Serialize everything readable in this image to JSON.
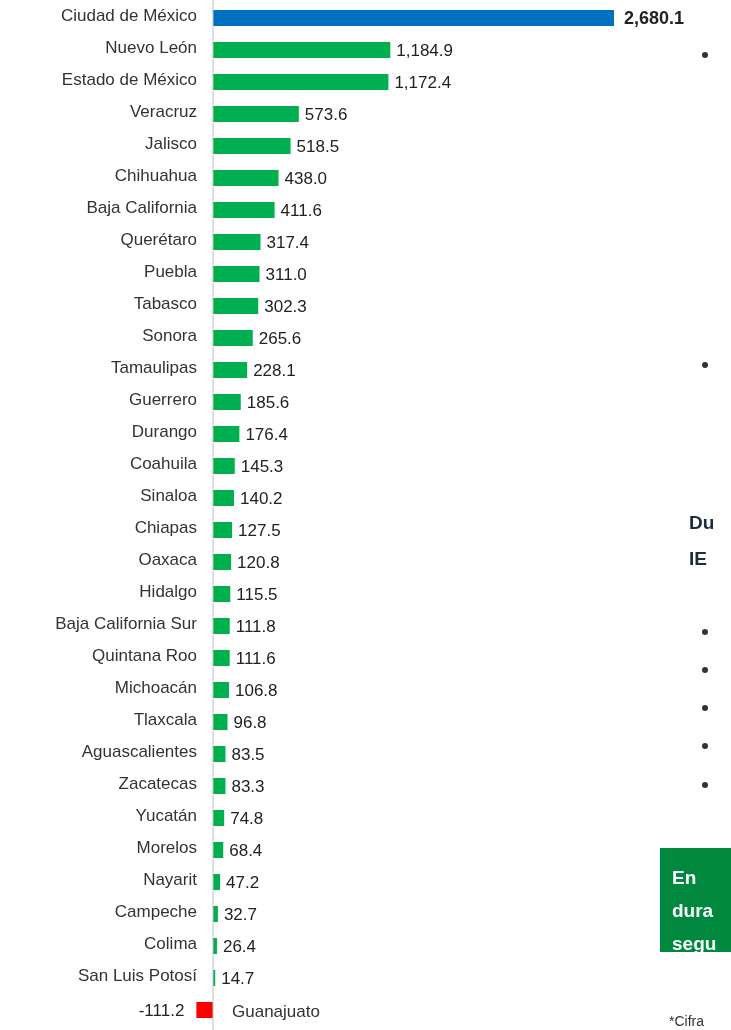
{
  "chart_data": {
    "type": "bar",
    "orientation": "horizontal",
    "categories": [
      "Ciudad de México",
      "Nuevo León",
      "Estado de México",
      "Veracruz",
      "Jalisco",
      "Chihuahua",
      "Baja California",
      "Querétaro",
      "Puebla",
      "Tabasco",
      "Sonora",
      "Tamaulipas",
      "Guerrero",
      "Durango",
      "Coahuila",
      "Sinaloa",
      "Chiapas",
      "Oaxaca",
      "Hidalgo",
      "Baja California Sur",
      "Quintana Roo",
      "Michoacán",
      "Tlaxcala",
      "Aguascalientes",
      "Zacatecas",
      "Yucatán",
      "Morelos",
      "Nayarit",
      "Campeche",
      "Colima",
      "San Luis Potosí",
      "Guanajuato"
    ],
    "values": [
      2680.1,
      1184.9,
      1172.4,
      573.6,
      518.5,
      438.0,
      411.6,
      317.4,
      311.0,
      302.3,
      265.6,
      228.1,
      185.6,
      176.4,
      145.3,
      140.2,
      127.5,
      120.8,
      115.5,
      111.8,
      111.6,
      106.8,
      96.8,
      83.5,
      83.3,
      74.8,
      68.4,
      47.2,
      32.7,
      26.4,
      14.7,
      -111.2
    ],
    "colors": [
      "#0070c0",
      "#00b050",
      "#00b050",
      "#00b050",
      "#00b050",
      "#00b050",
      "#00b050",
      "#00b050",
      "#00b050",
      "#00b050",
      "#00b050",
      "#00b050",
      "#00b050",
      "#00b050",
      "#00b050",
      "#00b050",
      "#00b050",
      "#00b050",
      "#00b050",
      "#00b050",
      "#00b050",
      "#00b050",
      "#00b050",
      "#00b050",
      "#00b050",
      "#00b050",
      "#00b050",
      "#00b050",
      "#00b050",
      "#00b050",
      "#00b050",
      "#ff0000"
    ],
    "value_labels": [
      "2,680.1",
      "1,184.9",
      "1,172.4",
      "573.6",
      "518.5",
      "438.0",
      "411.6",
      "317.4",
      "311.0",
      "302.3",
      "265.6",
      "228.1",
      "185.6",
      "176.4",
      "145.3",
      "140.2",
      "127.5",
      "120.8",
      "115.5",
      "111.8",
      "111.6",
      "106.8",
      "96.8",
      "83.5",
      "83.3",
      "74.8",
      "68.4",
      "47.2",
      "32.7",
      "26.4",
      "14.7",
      "-111.2"
    ],
    "annotations": [
      "Du",
      "IE",
      "En",
      "dura",
      "segu",
      "*Cifra"
    ]
  }
}
